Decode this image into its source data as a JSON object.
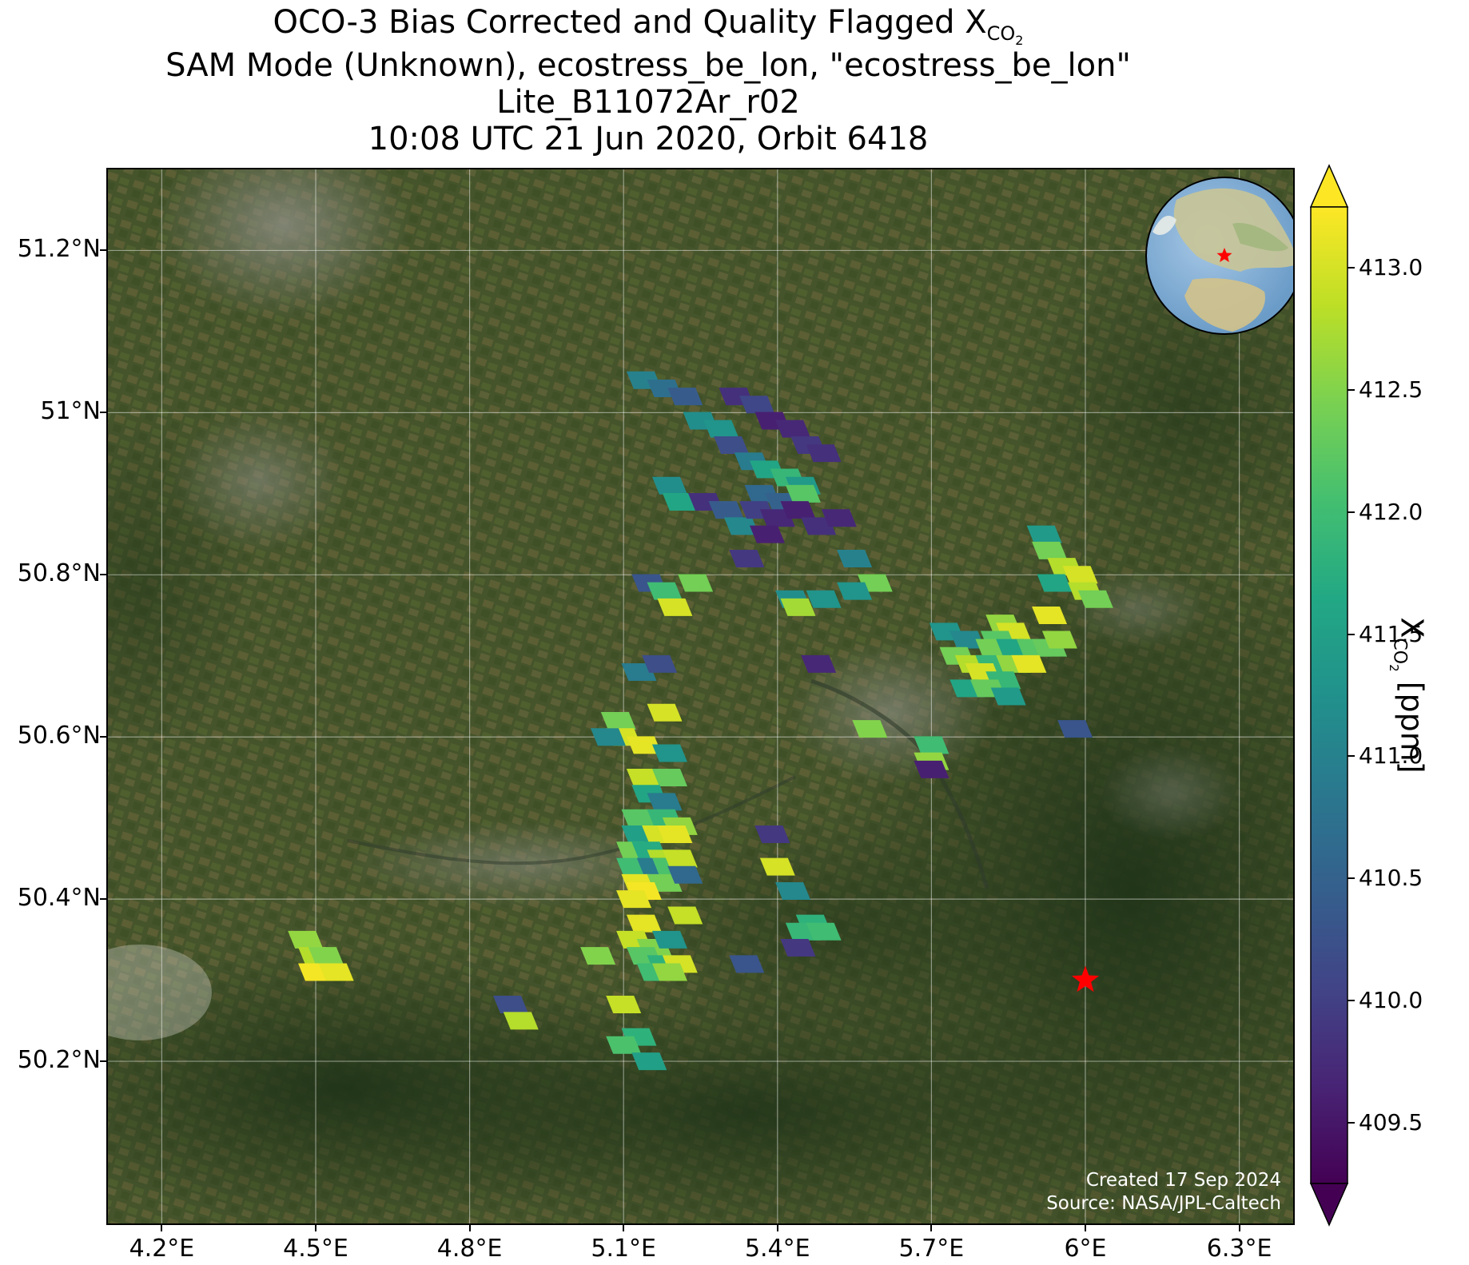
{
  "title": {
    "line1_main": "OCO-3 Bias Corrected and Quality Flagged X",
    "line1_sub": "CO",
    "line1_sub2": "2",
    "line2": "SAM Mode (Unknown), ecostress_be_lon, \"ecostress_be_lon\"",
    "line3": "Lite_B11072Ar_r02",
    "line4": "10:08 UTC 21 Jun 2020, Orbit 6418"
  },
  "axes": {
    "lon_ticks": [
      4.2,
      4.5,
      4.8,
      5.1,
      5.4,
      5.7,
      6.0,
      6.3
    ],
    "lon_labels": [
      "4.2°E",
      "4.5°E",
      "4.8°E",
      "5.1°E",
      "5.4°E",
      "5.7°E",
      "6°E",
      "6.3°E"
    ],
    "lat_ticks": [
      51.2,
      51.0,
      50.8,
      50.6,
      50.4,
      50.2
    ],
    "lat_labels": [
      "51.2°N",
      "51°N",
      "50.8°N",
      "50.6°N",
      "50.4°N",
      "50.2°N"
    ],
    "lon_range": [
      4.095,
      6.405
    ],
    "lat_range": [
      50.0,
      51.3
    ]
  },
  "target": {
    "name": "ecostress_be_lon",
    "lon": 6.0,
    "lat": 50.3,
    "marker": "red-star"
  },
  "colorbar": {
    "label_main": "X",
    "label_sub": "CO",
    "label_sub2": "2",
    "label_unit": " [ppm]",
    "vmin": 409.25,
    "vmax": 413.25,
    "colormap": "viridis",
    "extend": "both",
    "ticks": [
      409.5,
      410.0,
      410.5,
      411.0,
      411.5,
      412.0,
      412.5,
      413.0
    ],
    "tick_labels": [
      "409.5",
      "410.0",
      "410.5",
      "411.0",
      "411.5",
      "412.0",
      "412.5",
      "413.0"
    ]
  },
  "credits": {
    "created": "Created 17 Sep 2024",
    "source": "Source: NASA/JPL-Caltech"
  },
  "soundings": [
    {
      "lon": 5.14,
      "lat": 51.04,
      "xco2": 411.0
    },
    {
      "lon": 5.18,
      "lat": 51.03,
      "xco2": 410.7
    },
    {
      "lon": 5.22,
      "lat": 51.02,
      "xco2": 410.4
    },
    {
      "lon": 5.25,
      "lat": 50.99,
      "xco2": 411.2
    },
    {
      "lon": 5.29,
      "lat": 50.98,
      "xco2": 411.3
    },
    {
      "lon": 5.32,
      "lat": 51.02,
      "xco2": 409.8
    },
    {
      "lon": 5.36,
      "lat": 51.01,
      "xco2": 410.1
    },
    {
      "lon": 5.39,
      "lat": 50.99,
      "xco2": 409.6
    },
    {
      "lon": 5.43,
      "lat": 50.98,
      "xco2": 409.7
    },
    {
      "lon": 5.46,
      "lat": 50.96,
      "xco2": 409.9
    },
    {
      "lon": 5.49,
      "lat": 50.95,
      "xco2": 409.8
    },
    {
      "lon": 5.31,
      "lat": 50.96,
      "xco2": 410.2
    },
    {
      "lon": 5.35,
      "lat": 50.94,
      "xco2": 410.9
    },
    {
      "lon": 5.38,
      "lat": 50.93,
      "xco2": 411.6
    },
    {
      "lon": 5.42,
      "lat": 50.92,
      "xco2": 411.9
    },
    {
      "lon": 5.45,
      "lat": 50.91,
      "xco2": 411.4
    },
    {
      "lon": 5.37,
      "lat": 50.9,
      "xco2": 410.6
    },
    {
      "lon": 5.41,
      "lat": 50.89,
      "xco2": 410.5
    },
    {
      "lon": 5.45,
      "lat": 50.9,
      "xco2": 412.2
    },
    {
      "lon": 5.19,
      "lat": 50.91,
      "xco2": 411.2
    },
    {
      "lon": 5.21,
      "lat": 50.89,
      "xco2": 411.6
    },
    {
      "lon": 5.26,
      "lat": 50.89,
      "xco2": 409.8
    },
    {
      "lon": 5.3,
      "lat": 50.88,
      "xco2": 410.4
    },
    {
      "lon": 5.33,
      "lat": 50.86,
      "xco2": 411.1
    },
    {
      "lon": 5.36,
      "lat": 50.88,
      "xco2": 410.0
    },
    {
      "lon": 5.4,
      "lat": 50.87,
      "xco2": 409.7
    },
    {
      "lon": 5.44,
      "lat": 50.88,
      "xco2": 409.6
    },
    {
      "lon": 5.48,
      "lat": 50.86,
      "xco2": 409.8
    },
    {
      "lon": 5.52,
      "lat": 50.87,
      "xco2": 409.7
    },
    {
      "lon": 5.38,
      "lat": 50.85,
      "xco2": 409.6
    },
    {
      "lon": 5.34,
      "lat": 50.82,
      "xco2": 409.9
    },
    {
      "lon": 5.55,
      "lat": 50.82,
      "xco2": 411.0
    },
    {
      "lon": 5.59,
      "lat": 50.79,
      "xco2": 412.4
    },
    {
      "lon": 5.55,
      "lat": 50.78,
      "xco2": 411.3
    },
    {
      "lon": 5.43,
      "lat": 50.77,
      "xco2": 411.2
    },
    {
      "lon": 5.49,
      "lat": 50.77,
      "xco2": 411.3
    },
    {
      "lon": 5.44,
      "lat": 50.76,
      "xco2": 412.7
    },
    {
      "lon": 5.15,
      "lat": 50.79,
      "xco2": 410.3
    },
    {
      "lon": 5.18,
      "lat": 50.78,
      "xco2": 412.0
    },
    {
      "lon": 5.2,
      "lat": 50.76,
      "xco2": 413.0
    },
    {
      "lon": 5.24,
      "lat": 50.79,
      "xco2": 412.4
    },
    {
      "lon": 5.13,
      "lat": 50.68,
      "xco2": 410.9
    },
    {
      "lon": 5.17,
      "lat": 50.69,
      "xco2": 410.2
    },
    {
      "lon": 5.48,
      "lat": 50.69,
      "xco2": 409.7
    },
    {
      "lon": 5.18,
      "lat": 50.63,
      "xco2": 413.0
    },
    {
      "lon": 5.09,
      "lat": 50.62,
      "xco2": 412.4
    },
    {
      "lon": 5.1,
      "lat": 50.6,
      "xco2": 413.0
    },
    {
      "lon": 5.07,
      "lat": 50.6,
      "xco2": 411.1
    },
    {
      "lon": 5.14,
      "lat": 50.59,
      "xco2": 413.1
    },
    {
      "lon": 5.19,
      "lat": 50.58,
      "xco2": 411.3
    },
    {
      "lon": 5.14,
      "lat": 50.55,
      "xco2": 412.9
    },
    {
      "lon": 5.19,
      "lat": 50.55,
      "xco2": 412.3
    },
    {
      "lon": 5.15,
      "lat": 50.53,
      "xco2": 411.6
    },
    {
      "lon": 5.18,
      "lat": 50.52,
      "xco2": 410.9
    },
    {
      "lon": 5.13,
      "lat": 50.5,
      "xco2": 412.2
    },
    {
      "lon": 5.18,
      "lat": 50.5,
      "xco2": 411.9
    },
    {
      "lon": 5.21,
      "lat": 50.49,
      "xco2": 412.6
    },
    {
      "lon": 5.13,
      "lat": 50.48,
      "xco2": 411.5
    },
    {
      "lon": 5.17,
      "lat": 50.48,
      "xco2": 413.0
    },
    {
      "lon": 5.2,
      "lat": 50.48,
      "xco2": 413.1
    },
    {
      "lon": 5.12,
      "lat": 50.46,
      "xco2": 412.4
    },
    {
      "lon": 5.15,
      "lat": 50.46,
      "xco2": 411.7
    },
    {
      "lon": 5.18,
      "lat": 50.45,
      "xco2": 412.8
    },
    {
      "lon": 5.12,
      "lat": 50.44,
      "xco2": 412.0
    },
    {
      "lon": 5.16,
      "lat": 50.44,
      "xco2": 410.9
    },
    {
      "lon": 5.19,
      "lat": 50.44,
      "xco2": 412.1
    },
    {
      "lon": 5.21,
      "lat": 50.45,
      "xco2": 412.9
    },
    {
      "lon": 5.13,
      "lat": 50.42,
      "xco2": 413.1
    },
    {
      "lon": 5.18,
      "lat": 50.42,
      "xco2": 412.4
    },
    {
      "lon": 5.22,
      "lat": 50.43,
      "xco2": 410.6
    },
    {
      "lon": 5.14,
      "lat": 50.41,
      "xco2": 413.2
    },
    {
      "lon": 5.12,
      "lat": 50.4,
      "xco2": 413.1
    },
    {
      "lon": 5.39,
      "lat": 50.48,
      "xco2": 409.9
    },
    {
      "lon": 5.4,
      "lat": 50.44,
      "xco2": 413.0
    },
    {
      "lon": 5.43,
      "lat": 50.41,
      "xco2": 411.1
    },
    {
      "lon": 5.22,
      "lat": 50.38,
      "xco2": 412.9
    },
    {
      "lon": 5.14,
      "lat": 50.37,
      "xco2": 413.1
    },
    {
      "lon": 5.12,
      "lat": 50.35,
      "xco2": 412.9
    },
    {
      "lon": 5.16,
      "lat": 50.34,
      "xco2": 412.5
    },
    {
      "lon": 5.19,
      "lat": 50.35,
      "xco2": 411.3
    },
    {
      "lon": 5.14,
      "lat": 50.33,
      "xco2": 412.2
    },
    {
      "lon": 5.18,
      "lat": 50.32,
      "xco2": 411.8
    },
    {
      "lon": 5.21,
      "lat": 50.32,
      "xco2": 413.0
    },
    {
      "lon": 5.16,
      "lat": 50.31,
      "xco2": 412.0
    },
    {
      "lon": 5.19,
      "lat": 50.31,
      "xco2": 412.6
    },
    {
      "lon": 5.05,
      "lat": 50.33,
      "xco2": 412.5
    },
    {
      "lon": 5.47,
      "lat": 50.37,
      "xco2": 411.8
    },
    {
      "lon": 5.45,
      "lat": 50.36,
      "xco2": 411.9
    },
    {
      "lon": 5.49,
      "lat": 50.36,
      "xco2": 412.0
    },
    {
      "lon": 5.44,
      "lat": 50.34,
      "xco2": 409.9
    },
    {
      "lon": 5.34,
      "lat": 50.32,
      "xco2": 410.3
    },
    {
      "lon": 4.48,
      "lat": 50.35,
      "xco2": 412.6
    },
    {
      "lon": 4.5,
      "lat": 50.33,
      "xco2": 412.8
    },
    {
      "lon": 4.52,
      "lat": 50.33,
      "xco2": 412.5
    },
    {
      "lon": 4.5,
      "lat": 50.31,
      "xco2": 413.2
    },
    {
      "lon": 4.54,
      "lat": 50.31,
      "xco2": 413.1
    },
    {
      "lon": 4.88,
      "lat": 50.27,
      "xco2": 410.2
    },
    {
      "lon": 4.9,
      "lat": 50.25,
      "xco2": 412.8
    },
    {
      "lon": 5.1,
      "lat": 50.27,
      "xco2": 412.9
    },
    {
      "lon": 5.13,
      "lat": 50.23,
      "xco2": 411.8
    },
    {
      "lon": 5.1,
      "lat": 50.22,
      "xco2": 412.1
    },
    {
      "lon": 5.15,
      "lat": 50.2,
      "xco2": 411.5
    },
    {
      "lon": 5.7,
      "lat": 50.59,
      "xco2": 412.0
    },
    {
      "lon": 5.7,
      "lat": 50.57,
      "xco2": 412.6
    },
    {
      "lon": 5.7,
      "lat": 50.56,
      "xco2": 409.6
    },
    {
      "lon": 5.58,
      "lat": 50.61,
      "xco2": 412.5
    },
    {
      "lon": 5.98,
      "lat": 50.61,
      "xco2": 410.3
    },
    {
      "lon": 5.92,
      "lat": 50.85,
      "xco2": 411.4
    },
    {
      "lon": 5.93,
      "lat": 50.83,
      "xco2": 412.4
    },
    {
      "lon": 5.96,
      "lat": 50.81,
      "xco2": 412.8
    },
    {
      "lon": 5.99,
      "lat": 50.8,
      "xco2": 413.0
    },
    {
      "lon": 5.94,
      "lat": 50.79,
      "xco2": 411.6
    },
    {
      "lon": 6.0,
      "lat": 50.78,
      "xco2": 412.8
    },
    {
      "lon": 6.02,
      "lat": 50.77,
      "xco2": 412.4
    },
    {
      "lon": 5.93,
      "lat": 50.75,
      "xco2": 413.1
    },
    {
      "lon": 5.84,
      "lat": 50.74,
      "xco2": 412.6
    },
    {
      "lon": 5.86,
      "lat": 50.73,
      "xco2": 413.0
    },
    {
      "lon": 5.83,
      "lat": 50.72,
      "xco2": 412.2
    },
    {
      "lon": 5.73,
      "lat": 50.73,
      "xco2": 411.3
    },
    {
      "lon": 5.77,
      "lat": 50.72,
      "xco2": 411.1
    },
    {
      "lon": 5.82,
      "lat": 50.71,
      "xco2": 412.4
    },
    {
      "lon": 5.86,
      "lat": 50.71,
      "xco2": 411.6
    },
    {
      "lon": 5.9,
      "lat": 50.71,
      "xco2": 412.2
    },
    {
      "lon": 5.93,
      "lat": 50.71,
      "xco2": 412.3
    },
    {
      "lon": 5.95,
      "lat": 50.72,
      "xco2": 412.6
    },
    {
      "lon": 5.75,
      "lat": 50.7,
      "xco2": 412.4
    },
    {
      "lon": 5.78,
      "lat": 50.69,
      "xco2": 412.8
    },
    {
      "lon": 5.82,
      "lat": 50.69,
      "xco2": 411.9
    },
    {
      "lon": 5.86,
      "lat": 50.69,
      "xco2": 412.6
    },
    {
      "lon": 5.89,
      "lat": 50.69,
      "xco2": 413.1
    },
    {
      "lon": 5.8,
      "lat": 50.68,
      "xco2": 413.0
    },
    {
      "lon": 5.84,
      "lat": 50.67,
      "xco2": 411.9
    },
    {
      "lon": 5.77,
      "lat": 50.66,
      "xco2": 411.6
    },
    {
      "lon": 5.81,
      "lat": 50.66,
      "xco2": 412.3
    },
    {
      "lon": 5.85,
      "lat": 50.65,
      "xco2": 411.4
    }
  ]
}
